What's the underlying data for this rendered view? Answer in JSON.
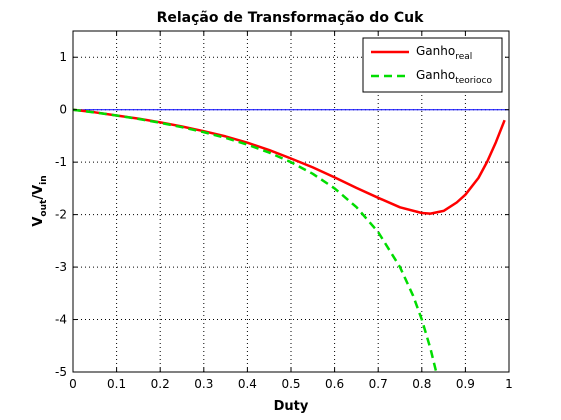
{
  "chart_data": {
    "type": "line",
    "title": "Relação de Transformação do Cuk",
    "xlabel": "Duty",
    "ylabel": {
      "base1": "V",
      "sub1": "out",
      "mid": "/V",
      "sub2": "in"
    },
    "xlim": [
      0,
      1
    ],
    "ylim": [
      -5,
      1.5
    ],
    "xticks": [
      0,
      0.1,
      0.2,
      0.3,
      0.4,
      0.5,
      0.6,
      0.7,
      0.8,
      0.9,
      1
    ],
    "xtick_labels": [
      "0",
      "0.1",
      "0.2",
      "0.3",
      "0.4",
      "0.5",
      "0.6",
      "0.7",
      "0.8",
      "0.9",
      "1"
    ],
    "yticks": [
      1,
      0,
      -1,
      -2,
      -3,
      -4,
      -5
    ],
    "ytick_labels": [
      "1",
      "0",
      "-1",
      "-2",
      "-3",
      "-4",
      "-5"
    ],
    "grid": true,
    "legend_position": "top-right",
    "reference_line": {
      "y": 0,
      "color": "#0000ff"
    },
    "series": [
      {
        "name": "Ganho",
        "name_sub": "real",
        "color": "#ff0000",
        "style": "solid",
        "x": [
          0,
          0.05,
          0.1,
          0.15,
          0.2,
          0.25,
          0.3,
          0.35,
          0.4,
          0.45,
          0.5,
          0.55,
          0.6,
          0.65,
          0.7,
          0.75,
          0.8,
          0.82,
          0.85,
          0.88,
          0.9,
          0.93,
          0.95,
          0.97,
          0.99
        ],
        "y": [
          0,
          -0.05,
          -0.11,
          -0.17,
          -0.24,
          -0.32,
          -0.41,
          -0.51,
          -0.63,
          -0.77,
          -0.93,
          -1.1,
          -1.29,
          -1.49,
          -1.68,
          -1.86,
          -1.97,
          -1.98,
          -1.93,
          -1.77,
          -1.62,
          -1.3,
          -0.99,
          -0.62,
          -0.2
        ]
      },
      {
        "name": "Ganho",
        "name_sub": "teorioco",
        "color": "#00dd00",
        "style": "dashed",
        "x": [
          0,
          0.05,
          0.1,
          0.15,
          0.2,
          0.25,
          0.3,
          0.35,
          0.4,
          0.45,
          0.5,
          0.55,
          0.6,
          0.65,
          0.7,
          0.75,
          0.78,
          0.8,
          0.82,
          0.833
        ],
        "y": [
          0,
          -0.053,
          -0.111,
          -0.176,
          -0.25,
          -0.333,
          -0.429,
          -0.538,
          -0.667,
          -0.818,
          -1.0,
          -1.222,
          -1.5,
          -1.857,
          -2.333,
          -3.0,
          -3.545,
          -4.0,
          -4.556,
          -5.0
        ]
      }
    ]
  }
}
